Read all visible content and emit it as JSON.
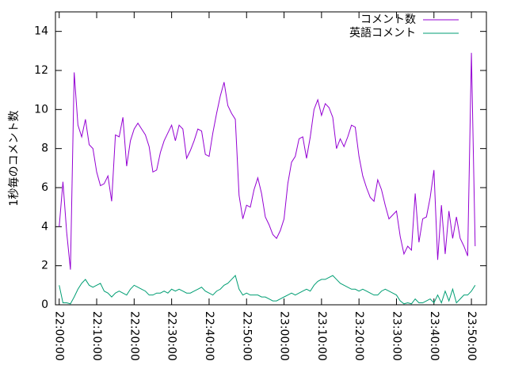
{
  "chart_data": {
    "type": "line",
    "ylabel": "1秒毎のコメント数",
    "x": [
      "22:00:00",
      "22:01:00",
      "22:02:00",
      "22:03:00",
      "22:04:00",
      "22:05:00",
      "22:06:00",
      "22:07:00",
      "22:08:00",
      "22:09:00",
      "22:10:00",
      "22:11:00",
      "22:12:00",
      "22:13:00",
      "22:14:00",
      "22:15:00",
      "22:16:00",
      "22:17:00",
      "22:18:00",
      "22:19:00",
      "22:20:00",
      "22:21:00",
      "22:22:00",
      "22:23:00",
      "22:24:00",
      "22:25:00",
      "22:26:00",
      "22:27:00",
      "22:28:00",
      "22:29:00",
      "22:30:00",
      "22:31:00",
      "22:32:00",
      "22:33:00",
      "22:34:00",
      "22:35:00",
      "22:36:00",
      "22:37:00",
      "22:38:00",
      "22:39:00",
      "22:40:00",
      "22:41:00",
      "22:42:00",
      "22:43:00",
      "22:44:00",
      "22:45:00",
      "22:46:00",
      "22:47:00",
      "22:48:00",
      "22:49:00",
      "22:50:00",
      "22:51:00",
      "22:52:00",
      "22:53:00",
      "22:54:00",
      "22:55:00",
      "22:56:00",
      "22:57:00",
      "22:58:00",
      "22:59:00",
      "23:00:00",
      "23:01:00",
      "23:02:00",
      "23:03:00",
      "23:04:00",
      "23:05:00",
      "23:06:00",
      "23:07:00",
      "23:08:00",
      "23:09:00",
      "23:10:00",
      "23:11:00",
      "23:12:00",
      "23:13:00",
      "23:14:00",
      "23:15:00",
      "23:16:00",
      "23:17:00",
      "23:18:00",
      "23:19:00",
      "23:20:00",
      "23:21:00",
      "23:22:00",
      "23:23:00",
      "23:24:00",
      "23:25:00",
      "23:26:00",
      "23:27:00",
      "23:28:00",
      "23:29:00",
      "23:30:00",
      "23:31:00",
      "23:32:00",
      "23:33:00",
      "23:34:00",
      "23:35:00",
      "23:36:00",
      "23:37:00",
      "23:38:00",
      "23:39:00",
      "23:40:00",
      "23:41:00",
      "23:42:00",
      "23:43:00",
      "23:44:00",
      "23:45:00",
      "23:46:00",
      "23:47:00",
      "23:48:00",
      "23:49:00",
      "23:50:00",
      "23:51:00"
    ],
    "series": [
      {
        "name": "コメント数",
        "color": "#9400d3",
        "values": [
          4.0,
          6.3,
          3.7,
          1.8,
          11.9,
          9.2,
          8.6,
          9.5,
          8.2,
          8.0,
          6.8,
          6.1,
          6.2,
          6.6,
          5.3,
          8.7,
          8.6,
          9.6,
          7.1,
          8.4,
          9.0,
          9.3,
          9.0,
          8.7,
          8.1,
          6.8,
          6.9,
          7.8,
          8.4,
          8.8,
          9.2,
          8.4,
          9.2,
          9.0,
          7.5,
          7.9,
          8.4,
          9.0,
          8.9,
          7.7,
          7.6,
          8.8,
          9.8,
          10.7,
          11.4,
          10.2,
          9.8,
          9.5,
          5.6,
          4.4,
          5.1,
          5.0,
          5.9,
          6.5,
          5.7,
          4.5,
          4.1,
          3.6,
          3.4,
          3.8,
          4.4,
          6.2,
          7.3,
          7.6,
          8.5,
          8.6,
          7.5,
          8.6,
          10.0,
          10.5,
          9.7,
          10.3,
          10.1,
          9.6,
          8.0,
          8.5,
          8.1,
          8.6,
          9.2,
          9.1,
          7.6,
          6.6,
          6.0,
          5.5,
          5.3,
          6.4,
          5.9,
          5.1,
          4.4,
          4.6,
          4.8,
          3.5,
          2.6,
          3.0,
          2.8,
          5.7,
          3.2,
          4.4,
          4.5,
          5.5,
          6.9,
          2.3,
          5.1,
          2.6,
          4.8,
          3.4,
          4.5,
          3.4,
          3.0,
          2.5,
          12.9,
          3.0
        ]
      },
      {
        "name": "英語コメント",
        "color": "#009e73",
        "values": [
          1.0,
          0.1,
          0.1,
          0.05,
          0.4,
          0.8,
          1.1,
          1.3,
          1.0,
          0.9,
          1.0,
          1.1,
          0.7,
          0.6,
          0.4,
          0.6,
          0.7,
          0.6,
          0.5,
          0.8,
          1.0,
          0.9,
          0.8,
          0.7,
          0.5,
          0.5,
          0.6,
          0.6,
          0.7,
          0.6,
          0.8,
          0.7,
          0.8,
          0.7,
          0.6,
          0.6,
          0.7,
          0.8,
          0.9,
          0.7,
          0.6,
          0.5,
          0.7,
          0.8,
          1.0,
          1.1,
          1.3,
          1.5,
          0.8,
          0.5,
          0.6,
          0.5,
          0.5,
          0.5,
          0.4,
          0.4,
          0.3,
          0.2,
          0.2,
          0.3,
          0.4,
          0.5,
          0.6,
          0.5,
          0.6,
          0.7,
          0.8,
          0.7,
          1.0,
          1.2,
          1.3,
          1.3,
          1.4,
          1.5,
          1.3,
          1.1,
          1.0,
          0.9,
          0.8,
          0.8,
          0.7,
          0.8,
          0.7,
          0.6,
          0.5,
          0.5,
          0.7,
          0.8,
          0.7,
          0.6,
          0.5,
          0.2,
          0.05,
          0.1,
          0.05,
          0.3,
          0.1,
          0.1,
          0.2,
          0.3,
          0.1,
          0.5,
          0.1,
          0.7,
          0.2,
          0.8,
          0.1,
          0.3,
          0.5,
          0.5,
          0.7,
          1.0
        ]
      }
    ],
    "xlim": [
      "21:59:00",
      "23:54:00"
    ],
    "xticks": [
      "22:00:00",
      "22:10:00",
      "22:20:00",
      "22:30:00",
      "22:40:00",
      "22:50:00",
      "23:00:00",
      "23:10:00",
      "23:20:00",
      "23:30:00",
      "23:40:00",
      "23:50:00"
    ],
    "ylim": [
      0,
      15
    ],
    "yticks": [
      0,
      2,
      4,
      6,
      8,
      10,
      12,
      14
    ],
    "legend": "top-right"
  }
}
